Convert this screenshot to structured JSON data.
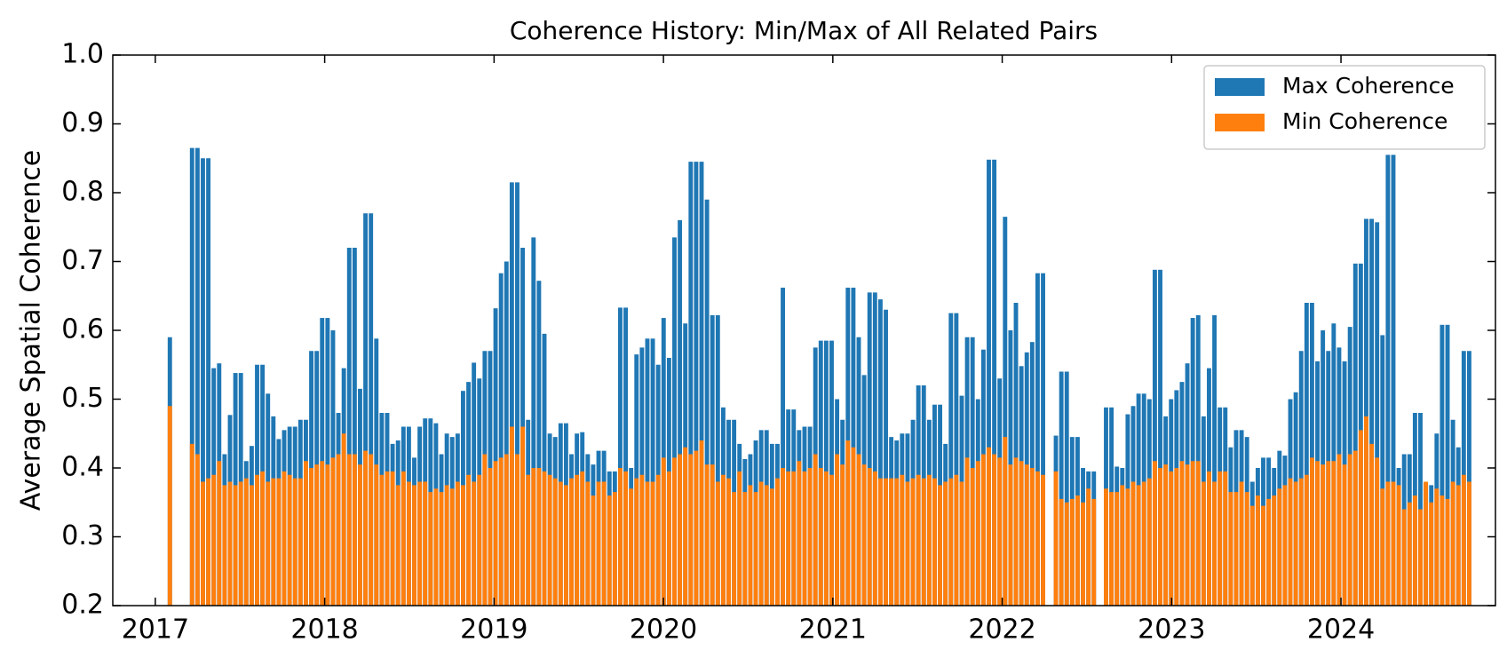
{
  "chart_data": {
    "type": "bar",
    "title": "Coherence History: Min/Max of All Related Pairs",
    "y_label": "Average Spatial Coherence",
    "xlim": [
      2016.749,
      2024.912
    ],
    "xticks": [
      2017,
      2018,
      2019,
      2020,
      2021,
      2022,
      2023,
      2024
    ],
    "ylim": [
      0.2,
      1.0
    ],
    "yticks": [
      0.2,
      0.3,
      0.4,
      0.5,
      0.6,
      0.7,
      0.8,
      0.9,
      {
        "value": 1,
        "label": "1.0"
      }
    ],
    "legend": "upper right",
    "x": [
      2017.086,
      2017.217,
      2017.249,
      2017.281,
      2017.313,
      2017.345,
      2017.377,
      2017.409,
      2017.441,
      2017.473,
      2017.505,
      2017.537,
      2017.569,
      2017.601,
      2017.633,
      2017.665,
      2017.697,
      2017.729,
      2017.761,
      2017.793,
      2017.825,
      2017.857,
      2017.889,
      2017.921,
      2017.953,
      2017.985,
      2018.017,
      2018.049,
      2018.081,
      2018.113,
      2018.145,
      2018.177,
      2018.209,
      2018.241,
      2018.273,
      2018.305,
      2018.337,
      2018.369,
      2018.401,
      2018.433,
      2018.465,
      2018.497,
      2018.529,
      2018.561,
      2018.593,
      2018.625,
      2018.657,
      2018.689,
      2018.721,
      2018.753,
      2018.785,
      2018.817,
      2018.849,
      2018.881,
      2018.913,
      2018.945,
      2018.977,
      2019.009,
      2019.041,
      2019.073,
      2019.105,
      2019.137,
      2019.169,
      2019.201,
      2019.233,
      2019.265,
      2019.297,
      2019.329,
      2019.361,
      2019.393,
      2019.425,
      2019.457,
      2019.489,
      2019.521,
      2019.553,
      2019.585,
      2019.617,
      2019.649,
      2019.681,
      2019.713,
      2019.745,
      2019.777,
      2019.809,
      2019.841,
      2019.873,
      2019.905,
      2019.937,
      2019.969,
      2020.001,
      2020.033,
      2020.065,
      2020.097,
      2020.129,
      2020.161,
      2020.193,
      2020.225,
      2020.257,
      2020.289,
      2020.321,
      2020.353,
      2020.385,
      2020.417,
      2020.449,
      2020.481,
      2020.513,
      2020.545,
      2020.577,
      2020.609,
      2020.641,
      2020.673,
      2020.705,
      2020.737,
      2020.769,
      2020.801,
      2020.833,
      2020.865,
      2020.897,
      2020.929,
      2020.961,
      2020.993,
      2021.025,
      2021.057,
      2021.089,
      2021.121,
      2021.153,
      2021.185,
      2021.217,
      2021.249,
      2021.281,
      2021.313,
      2021.345,
      2021.377,
      2021.409,
      2021.441,
      2021.473,
      2021.505,
      2021.537,
      2021.569,
      2021.601,
      2021.633,
      2021.665,
      2021.697,
      2021.729,
      2021.761,
      2021.793,
      2021.825,
      2021.857,
      2021.889,
      2021.921,
      2021.953,
      2021.985,
      2022.017,
      2022.049,
      2022.081,
      2022.113,
      2022.145,
      2022.177,
      2022.209,
      2022.241,
      2022.317,
      2022.349,
      2022.381,
      2022.413,
      2022.445,
      2022.477,
      2022.509,
      2022.541,
      2022.613,
      2022.645,
      2022.677,
      2022.709,
      2022.741,
      2022.773,
      2022.805,
      2022.837,
      2022.869,
      2022.901,
      2022.933,
      2022.965,
      2022.997,
      2023.029,
      2023.061,
      2023.093,
      2023.125,
      2023.157,
      2023.189,
      2023.221,
      2023.253,
      2023.285,
      2023.317,
      2023.349,
      2023.381,
      2023.413,
      2023.445,
      2023.477,
      2023.509,
      2023.541,
      2023.573,
      2023.605,
      2023.637,
      2023.669,
      2023.701,
      2023.733,
      2023.765,
      2023.797,
      2023.829,
      2023.861,
      2023.893,
      2023.925,
      2023.957,
      2023.989,
      2024.021,
      2024.053,
      2024.085,
      2024.117,
      2024.149,
      2024.181,
      2024.213,
      2024.245,
      2024.277,
      2024.309,
      2024.341,
      2024.373,
      2024.405,
      2024.437,
      2024.469,
      2024.501,
      2024.533,
      2024.565,
      2024.597,
      2024.629,
      2024.661,
      2024.693,
      2024.725,
      2024.757
    ],
    "series": [
      {
        "name": "Max Coherence",
        "color": "#1f77b4",
        "values": [
          0.59,
          0.865,
          0.865,
          0.85,
          0.85,
          0.545,
          0.552,
          0.42,
          0.477,
          0.538,
          0.538,
          0.41,
          0.432,
          0.55,
          0.55,
          0.508,
          0.475,
          0.442,
          0.455,
          0.46,
          0.46,
          0.47,
          0.47,
          0.57,
          0.57,
          0.618,
          0.618,
          0.6,
          0.48,
          0.545,
          0.72,
          0.72,
          0.515,
          0.77,
          0.77,
          0.588,
          0.48,
          0.48,
          0.435,
          0.44,
          0.46,
          0.46,
          0.415,
          0.46,
          0.472,
          0.472,
          0.465,
          0.42,
          0.45,
          0.445,
          0.45,
          0.512,
          0.525,
          0.553,
          0.53,
          0.57,
          0.57,
          0.632,
          0.683,
          0.7,
          0.815,
          0.815,
          0.72,
          0.47,
          0.735,
          0.672,
          0.595,
          0.45,
          0.445,
          0.465,
          0.465,
          0.42,
          0.45,
          0.452,
          0.42,
          0.405,
          0.425,
          0.425,
          0.395,
          0.395,
          0.633,
          0.633,
          0.4,
          0.565,
          0.575,
          0.588,
          0.588,
          0.55,
          0.618,
          0.56,
          0.735,
          0.76,
          0.61,
          0.845,
          0.845,
          0.845,
          0.79,
          0.622,
          0.622,
          0.488,
          0.47,
          0.47,
          0.435,
          0.413,
          0.42,
          0.44,
          0.455,
          0.455,
          0.435,
          0.435,
          0.662,
          0.485,
          0.485,
          0.455,
          0.46,
          0.46,
          0.575,
          0.585,
          0.585,
          0.585,
          0.5,
          0.47,
          0.662,
          0.662,
          0.59,
          0.535,
          0.655,
          0.655,
          0.645,
          0.63,
          0.445,
          0.44,
          0.45,
          0.45,
          0.47,
          0.52,
          0.52,
          0.47,
          0.492,
          0.492,
          0.435,
          0.625,
          0.625,
          0.505,
          0.59,
          0.59,
          0.5,
          0.572,
          0.848,
          0.848,
          0.53,
          0.765,
          0.6,
          0.64,
          0.548,
          0.568,
          0.583,
          0.683,
          0.683,
          0.447,
          0.54,
          0.54,
          0.445,
          0.445,
          0.4,
          0.395,
          0.395,
          0.488,
          0.488,
          0.402,
          0.4,
          0.478,
          0.49,
          0.508,
          0.508,
          0.5,
          0.688,
          0.688,
          0.475,
          0.5,
          0.513,
          0.525,
          0.552,
          0.618,
          0.622,
          0.475,
          0.545,
          0.622,
          0.488,
          0.488,
          0.43,
          0.455,
          0.455,
          0.445,
          0.38,
          0.4,
          0.415,
          0.415,
          0.4,
          0.425,
          0.418,
          0.5,
          0.51,
          0.57,
          0.64,
          0.64,
          0.555,
          0.6,
          0.57,
          0.61,
          0.575,
          0.555,
          0.605,
          0.697,
          0.697,
          0.762,
          0.762,
          0.757,
          0.593,
          0.855,
          0.855,
          0.4,
          0.42,
          0.42,
          0.48,
          0.48,
          0.38,
          0.375,
          0.45,
          0.608,
          0.608,
          0.47,
          0.43,
          0.57,
          0.57
        ]
      },
      {
        "name": "Min Coherence",
        "color": "#ff7f0e",
        "values": [
          0.49,
          0.435,
          0.42,
          0.38,
          0.385,
          0.39,
          0.41,
          0.375,
          0.38,
          0.375,
          0.38,
          0.385,
          0.375,
          0.39,
          0.395,
          0.38,
          0.385,
          0.385,
          0.395,
          0.39,
          0.385,
          0.385,
          0.41,
          0.4,
          0.405,
          0.41,
          0.405,
          0.415,
          0.42,
          0.45,
          0.42,
          0.42,
          0.405,
          0.425,
          0.42,
          0.405,
          0.39,
          0.395,
          0.395,
          0.375,
          0.395,
          0.38,
          0.375,
          0.38,
          0.38,
          0.365,
          0.37,
          0.365,
          0.375,
          0.37,
          0.38,
          0.375,
          0.39,
          0.38,
          0.39,
          0.42,
          0.4,
          0.41,
          0.415,
          0.42,
          0.46,
          0.42,
          0.46,
          0.39,
          0.4,
          0.4,
          0.395,
          0.39,
          0.385,
          0.38,
          0.375,
          0.385,
          0.39,
          0.395,
          0.38,
          0.36,
          0.38,
          0.38,
          0.36,
          0.365,
          0.4,
          0.395,
          0.37,
          0.385,
          0.39,
          0.38,
          0.38,
          0.39,
          0.415,
          0.395,
          0.415,
          0.42,
          0.43,
          0.42,
          0.425,
          0.44,
          0.405,
          0.405,
          0.38,
          0.39,
          0.385,
          0.365,
          0.395,
          0.365,
          0.375,
          0.365,
          0.38,
          0.375,
          0.37,
          0.385,
          0.4,
          0.395,
          0.395,
          0.41,
          0.395,
          0.4,
          0.42,
          0.4,
          0.395,
          0.39,
          0.42,
          0.405,
          0.44,
          0.43,
          0.42,
          0.405,
          0.4,
          0.395,
          0.385,
          0.385,
          0.385,
          0.385,
          0.39,
          0.38,
          0.385,
          0.39,
          0.385,
          0.39,
          0.385,
          0.375,
          0.38,
          0.385,
          0.39,
          0.38,
          0.415,
          0.4,
          0.41,
          0.42,
          0.43,
          0.42,
          0.415,
          0.445,
          0.405,
          0.415,
          0.41,
          0.405,
          0.4,
          0.395,
          0.39,
          0.395,
          0.355,
          0.35,
          0.355,
          0.36,
          0.35,
          0.37,
          0.355,
          0.37,
          0.365,
          0.365,
          0.375,
          0.37,
          0.38,
          0.375,
          0.38,
          0.385,
          0.41,
          0.4,
          0.405,
          0.395,
          0.4,
          0.41,
          0.405,
          0.41,
          0.41,
          0.38,
          0.395,
          0.38,
          0.395,
          0.395,
          0.365,
          0.365,
          0.38,
          0.365,
          0.345,
          0.36,
          0.345,
          0.355,
          0.36,
          0.37,
          0.375,
          0.385,
          0.38,
          0.385,
          0.39,
          0.415,
          0.41,
          0.405,
          0.41,
          0.41,
          0.42,
          0.405,
          0.42,
          0.425,
          0.455,
          0.475,
          0.435,
          0.415,
          0.37,
          0.38,
          0.38,
          0.375,
          0.34,
          0.35,
          0.36,
          0.34,
          0.38,
          0.35,
          0.37,
          0.36,
          0.355,
          0.38,
          0.375,
          0.39,
          0.38
        ]
      }
    ]
  }
}
